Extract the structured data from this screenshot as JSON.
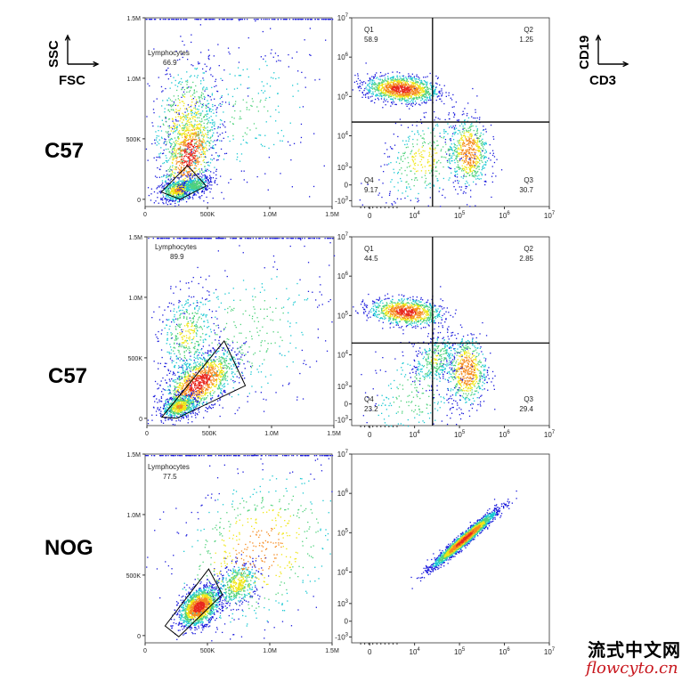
{
  "axis_legend": {
    "scatter": {
      "y": "SSC",
      "x": "FSC"
    },
    "quadrant": {
      "y": "CD19",
      "x": "CD3"
    }
  },
  "row_labels": [
    "C57",
    "C57",
    "NOG"
  ],
  "watermark": {
    "cn": "流式中文网",
    "en": "flowcyto.cn"
  },
  "colors": {
    "low": "#1a1adc",
    "mid": "#19c8d2",
    "high": "#f0e614",
    "peak": "#e8281e",
    "gate": "#000000"
  },
  "chart_data": [
    {
      "type": "scatter",
      "panel": "row1-left",
      "x_ticks": [
        "0",
        "500K",
        "1.0M",
        "1.5M"
      ],
      "y_ticks": [
        "0",
        "500K",
        "1.0M",
        "1.5M"
      ],
      "xlim": [
        0,
        1500000
      ],
      "ylim": [
        0,
        1500000
      ],
      "gate": {
        "name": "Lymphocytes",
        "percent": "66.9",
        "polygon": [
          [
            130000,
            60000
          ],
          [
            280000,
            0
          ],
          [
            490000,
            110000
          ],
          [
            340000,
            280000
          ]
        ]
      },
      "populations": [
        {
          "cx": 350000,
          "cy": 380000,
          "sx": 110000,
          "sy": 200000,
          "r": 0.4,
          "w": 0.35
        },
        {
          "cx": 320000,
          "cy": 650000,
          "sx": 140000,
          "sy": 260000,
          "r": 0.2,
          "w": 0.2
        },
        {
          "cx": 260000,
          "cy": 80000,
          "sx": 70000,
          "sy": 45000,
          "r": 0.3,
          "w": 0.22
        },
        {
          "cx": 400000,
          "cy": 120000,
          "sx": 60000,
          "sy": 40000,
          "r": 0.2,
          "w": 0.13
        },
        {
          "cx": 800000,
          "cy": 700000,
          "sx": 350000,
          "sy": 350000,
          "r": 0.3,
          "w": 0.1
        }
      ]
    },
    {
      "type": "scatter",
      "panel": "row1-right",
      "axis_scale": "biexponential",
      "x_ticks": [
        "0",
        "10^4",
        "10^5",
        "10^6",
        "10^7"
      ],
      "y_ticks": [
        "-10^3",
        "0",
        "10^3",
        "10^4",
        "10^5",
        "10^6",
        "10^7"
      ],
      "quadrant_split": {
        "x": "10^4.4",
        "y": "10^4.35"
      },
      "quadrants": [
        {
          "name": "Q1",
          "value": "58.9"
        },
        {
          "name": "Q2",
          "value": "1.25"
        },
        {
          "name": "Q3",
          "value": "30.7"
        },
        {
          "name": "Q4",
          "value": "9.17"
        }
      ],
      "populations": [
        {
          "cx": 3.7,
          "cy": 5.2,
          "sx": 0.4,
          "sy": 0.17,
          "r": -0.2,
          "w": 0.55
        },
        {
          "cx": 5.2,
          "cy": 3.6,
          "sx": 0.22,
          "sy": 0.45,
          "r": 0.0,
          "w": 0.28
        },
        {
          "cx": 4.2,
          "cy": 3.4,
          "sx": 0.5,
          "sy": 0.6,
          "r": 0.3,
          "w": 0.17
        }
      ]
    },
    {
      "type": "scatter",
      "panel": "row2-left",
      "x_ticks": [
        "0",
        "500K",
        "1.0M",
        "1.5M"
      ],
      "y_ticks": [
        "0",
        "500K",
        "1.0M",
        "1.5M"
      ],
      "xlim": [
        0,
        1500000
      ],
      "ylim": [
        0,
        1500000
      ],
      "gate": {
        "name": "Lymphocytes",
        "percent": "89.9",
        "polygon": [
          [
            120000,
            10000
          ],
          [
            240000,
            0
          ],
          [
            790000,
            270000
          ],
          [
            620000,
            640000
          ]
        ]
      },
      "populations": [
        {
          "cx": 420000,
          "cy": 300000,
          "sx": 150000,
          "sy": 130000,
          "r": 0.6,
          "w": 0.45
        },
        {
          "cx": 260000,
          "cy": 100000,
          "sx": 70000,
          "sy": 50000,
          "r": 0.3,
          "w": 0.2
        },
        {
          "cx": 320000,
          "cy": 700000,
          "sx": 120000,
          "sy": 180000,
          "r": 0.2,
          "w": 0.15
        },
        {
          "cx": 800000,
          "cy": 700000,
          "sx": 350000,
          "sy": 350000,
          "r": 0.3,
          "w": 0.12
        }
      ]
    },
    {
      "type": "scatter",
      "panel": "row2-right",
      "axis_scale": "biexponential",
      "x_ticks": [
        "0",
        "10^4",
        "10^5",
        "10^6",
        "10^7"
      ],
      "y_ticks": [
        "-10^3",
        "0",
        "10^3",
        "10^4",
        "10^5",
        "10^6",
        "10^7"
      ],
      "quadrant_split": {
        "x": "10^4.4",
        "y": "10^4.3"
      },
      "quadrants": [
        {
          "name": "Q1",
          "value": "44.5"
        },
        {
          "name": "Q2",
          "value": "2.85"
        },
        {
          "name": "Q3",
          "value": "29.4"
        },
        {
          "name": "Q4",
          "value": "23.2"
        }
      ],
      "populations": [
        {
          "cx": 3.8,
          "cy": 5.1,
          "sx": 0.4,
          "sy": 0.17,
          "r": -0.2,
          "w": 0.45
        },
        {
          "cx": 5.15,
          "cy": 3.6,
          "sx": 0.22,
          "sy": 0.45,
          "r": 0.0,
          "w": 0.28
        },
        {
          "cx": 4.45,
          "cy": 3.9,
          "sx": 0.25,
          "sy": 0.35,
          "r": 0.4,
          "w": 0.15
        },
        {
          "cx": 4.0,
          "cy": 3.0,
          "sx": 0.6,
          "sy": 0.7,
          "r": 0.3,
          "w": 0.12
        }
      ]
    },
    {
      "type": "scatter",
      "panel": "row3-left",
      "x_ticks": [
        "0",
        "500K",
        "1.0M",
        "1.5M"
      ],
      "y_ticks": [
        "0",
        "500K",
        "1.0M",
        "1.5M"
      ],
      "xlim": [
        0,
        1500000
      ],
      "ylim": [
        0,
        1500000
      ],
      "gate": {
        "name": "Lymphocytes",
        "percent": "77.5",
        "polygon": [
          [
            160000,
            80000
          ],
          [
            270000,
            -10000
          ],
          [
            620000,
            340000
          ],
          [
            510000,
            550000
          ]
        ]
      },
      "populations": [
        {
          "cx": 430000,
          "cy": 240000,
          "sx": 80000,
          "sy": 80000,
          "r": 0.4,
          "w": 0.5
        },
        {
          "cx": 740000,
          "cy": 430000,
          "sx": 90000,
          "sy": 90000,
          "r": 0.3,
          "w": 0.15
        },
        {
          "cx": 900000,
          "cy": 700000,
          "sx": 350000,
          "sy": 350000,
          "r": 0.3,
          "w": 0.2
        }
      ]
    },
    {
      "type": "scatter",
      "panel": "row3-right",
      "axis_scale": "biexponential",
      "x_ticks": [
        "0",
        "10^4",
        "10^5",
        "10^6",
        "10^7"
      ],
      "y_ticks": [
        "-10^3",
        "0",
        "10^3",
        "10^4",
        "10^5",
        "10^6",
        "10^7"
      ],
      "populations": [
        {
          "cx": 5.1,
          "cy": 4.85,
          "sx": 0.35,
          "sy": 0.35,
          "r": 0.97,
          "w": 1.0
        }
      ]
    }
  ]
}
